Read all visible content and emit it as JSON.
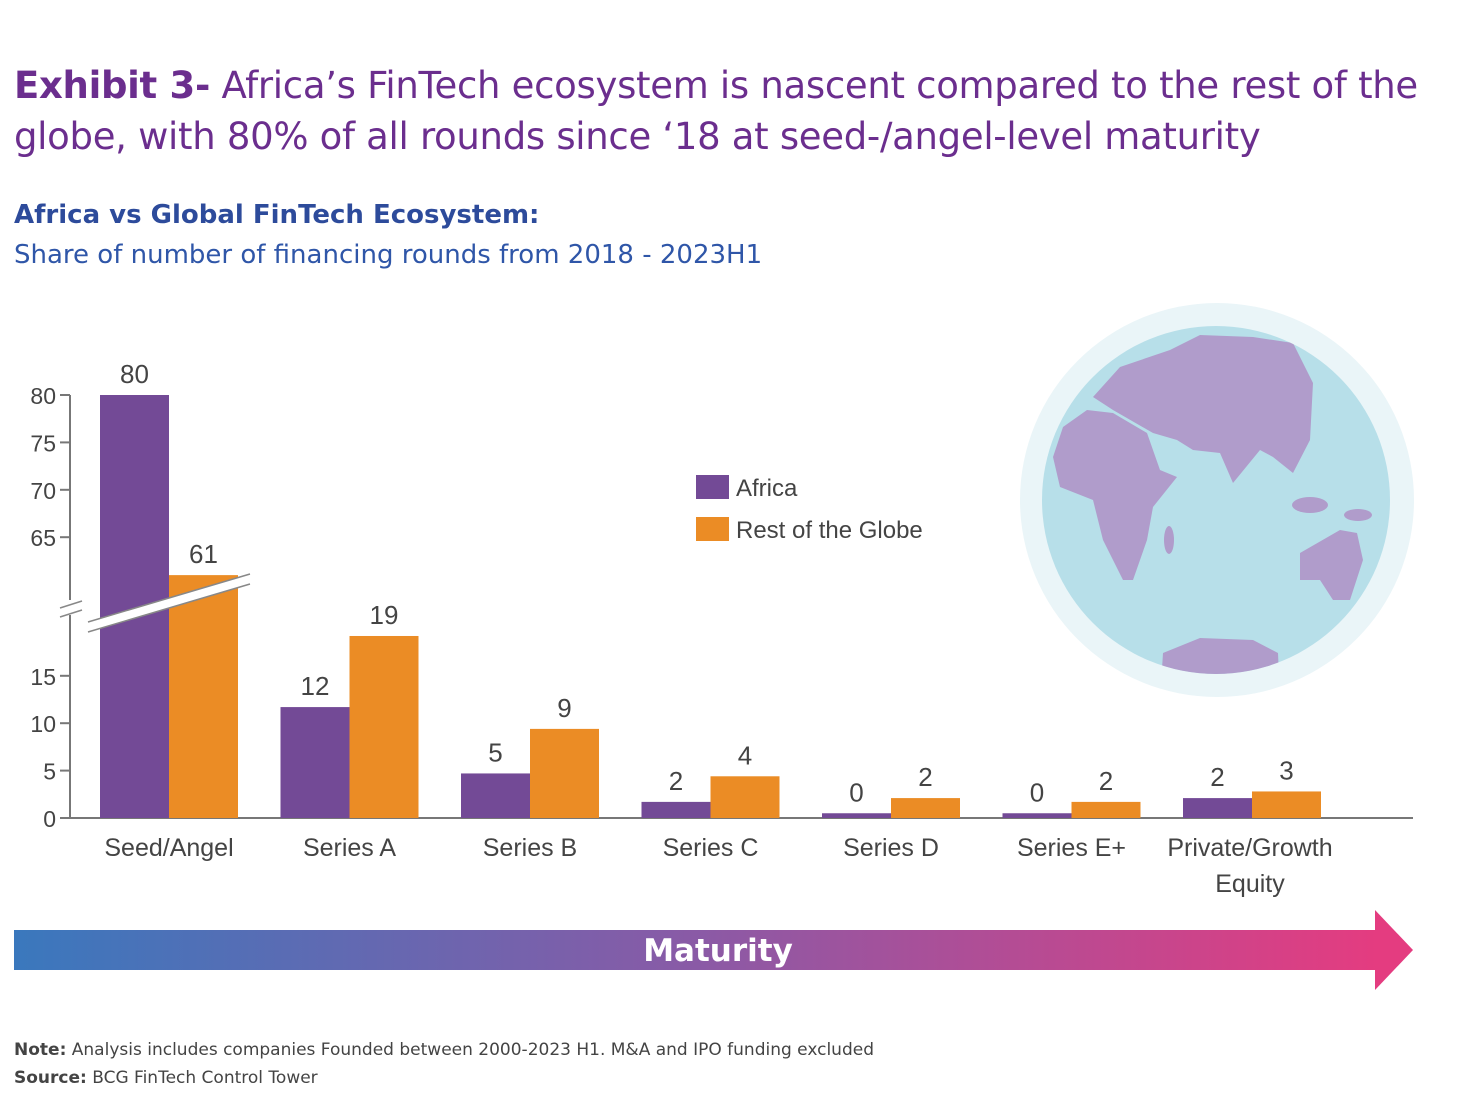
{
  "title": {
    "prefix": "Exhibit 3-",
    "text": " Africa’s FinTech ecosystem is nascent compared to the rest of the globe, with 80% of all rounds since ‘18 at seed-/angel-level maturity"
  },
  "subtitle": {
    "bold": "Africa vs Global FinTech Ecosystem:",
    "text": "Share of number of financing rounds from 2018 - 2023H1"
  },
  "chart_data": {
    "type": "bar",
    "categories": [
      [
        "Seed/Angel"
      ],
      [
        "Series A"
      ],
      [
        "Series B"
      ],
      [
        "Series C"
      ],
      [
        "Series D"
      ],
      [
        "Series E+"
      ],
      [
        "Private/Growth",
        "Equity"
      ]
    ],
    "series": [
      {
        "name": "Africa",
        "color": "#734a96",
        "values": [
          80,
          11.7,
          4.7,
          1.7,
          0.5,
          0.5,
          2.1
        ],
        "labels": [
          "80",
          "12",
          "5",
          "2",
          "0",
          "0",
          "2"
        ]
      },
      {
        "name": "Rest of the Globe",
        "color": "#eb8c25",
        "values": [
          61,
          19.2,
          9.4,
          4.4,
          2.1,
          1.7,
          2.8
        ],
        "labels": [
          "61",
          "19",
          "9",
          "4",
          "2",
          "2",
          "3"
        ]
      }
    ],
    "y_ticks_lower": [
      "0",
      "5",
      "10",
      "15"
    ],
    "y_ticks_upper": [
      "65",
      "70",
      "75",
      "80"
    ],
    "ylim": [
      0,
      80
    ],
    "axis_break": true,
    "grid": false,
    "legend": "center",
    "xlabel": "",
    "ylabel": ""
  },
  "maturity_arrow": {
    "label": "Maturity",
    "colors": [
      "#3a78bd",
      "#8a5aa6",
      "#e43c80"
    ]
  },
  "globe": {
    "icon": "globe-icon",
    "ocean": "#b7dfe9",
    "halo": "#eaf5f8",
    "land": "#b09ccb"
  },
  "notes": {
    "note_label": "Note:",
    "note_text": " Analysis includes companies Founded between 2000-2023 H1. M&A and IPO funding excluded",
    "source_label": "Source:",
    "source_text": " BCG FinTech Control Tower"
  }
}
